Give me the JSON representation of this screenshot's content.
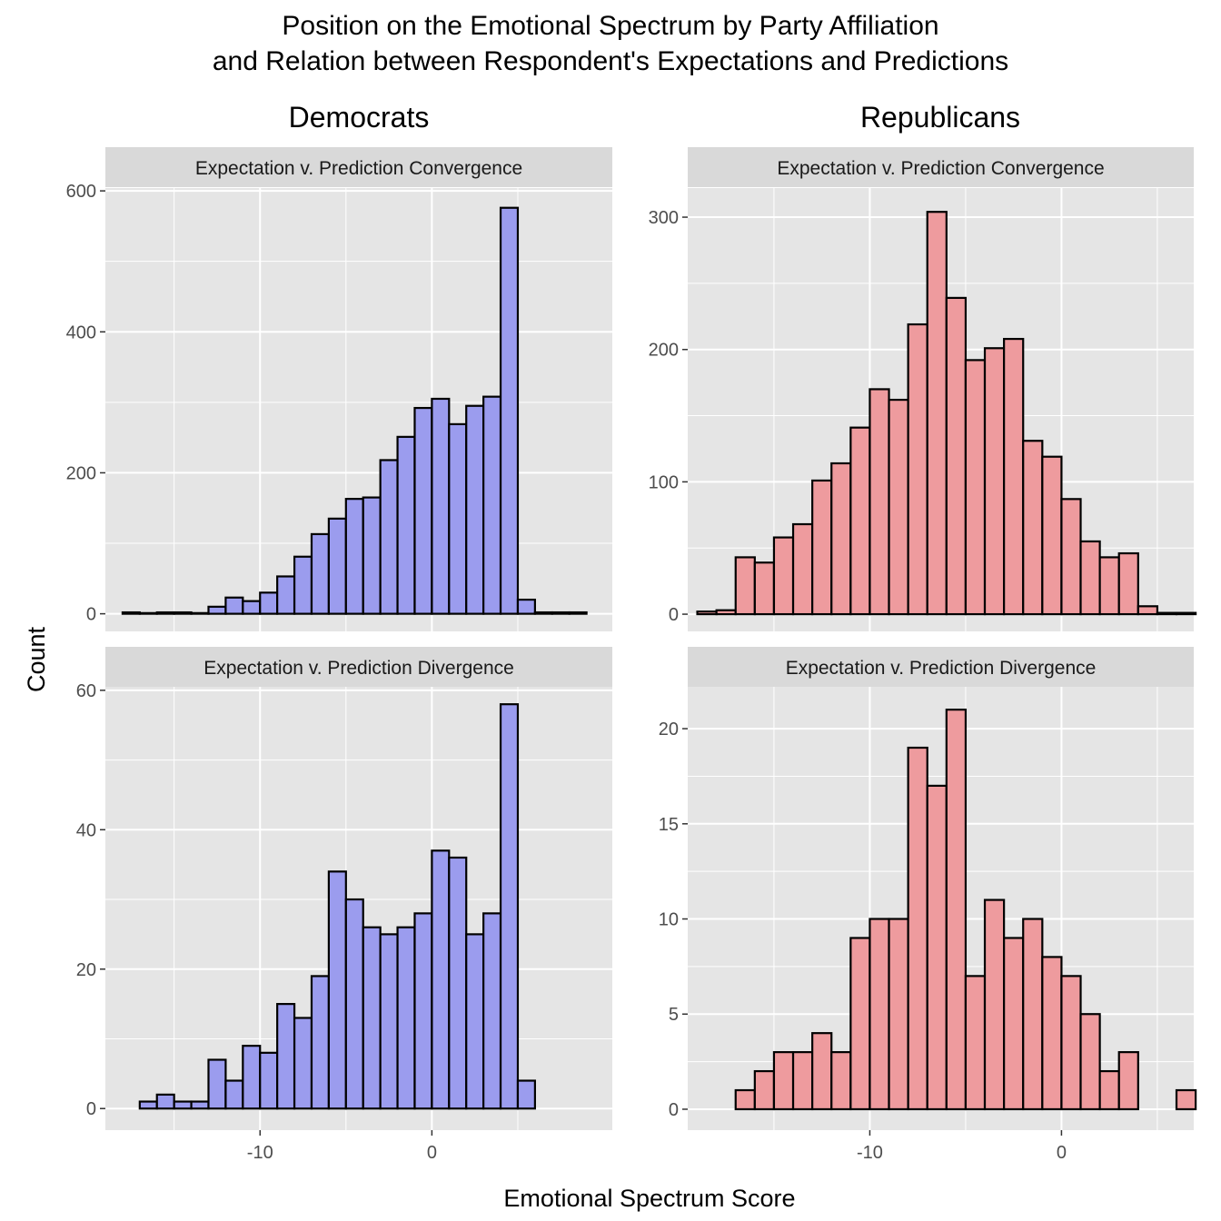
{
  "title_line1": "Position on the Emotional Spectrum by Party Affiliation",
  "title_line2": "and Relation between Respondent's Expectations and Predictions",
  "xlabel": "Emotional Spectrum Score",
  "ylabel": "Count",
  "colors": {
    "democrats_fill": "#9b9cee",
    "republicans_fill": "#ee9b9e",
    "bar_outline": "#000000",
    "panel_bg": "#e5e5e5",
    "strip_bg": "#d9d9d9",
    "grid": "#ffffff"
  },
  "chart_data": [
    {
      "type": "bar",
      "party": "Democrats",
      "facet": "Expectation v. Prediction Convergence",
      "x_ticks": [
        -10,
        0
      ],
      "y_ticks": [
        0,
        200,
        400,
        600
      ],
      "xlim": [
        -19,
        10.5
      ],
      "ylim": [
        -25,
        604
      ],
      "bin_width": 1,
      "bin_centers": [
        -17.5,
        -16.5,
        -15.5,
        -14.5,
        -13.5,
        -12.5,
        -11.5,
        -10.5,
        -9.5,
        -8.5,
        -7.5,
        -6.5,
        -5.5,
        -4.5,
        -3.5,
        -2.5,
        -1.5,
        -0.5,
        0.5,
        1.5,
        2.5,
        3.5,
        4.5,
        5.5,
        6.5,
        7.5,
        8.5
      ],
      "values": [
        2,
        1,
        2,
        2,
        1,
        10,
        23,
        18,
        30,
        53,
        81,
        113,
        135,
        163,
        165,
        218,
        251,
        292,
        305,
        269,
        295,
        308,
        576,
        20,
        2,
        2,
        2
      ]
    },
    {
      "type": "bar",
      "party": "Republicans",
      "facet": "Expectation v. Prediction Convergence",
      "x_ticks": [
        -10,
        0
      ],
      "y_ticks": [
        0,
        100,
        200,
        300
      ],
      "xlim": [
        -19.5,
        6.9
      ],
      "ylim": [
        -13,
        322
      ],
      "bin_width": 1,
      "bin_centers": [
        -18.5,
        -17.5,
        -16.5,
        -15.5,
        -14.5,
        -13.5,
        -12.5,
        -11.5,
        -10.5,
        -9.5,
        -8.5,
        -7.5,
        -6.5,
        -5.5,
        -4.5,
        -3.5,
        -2.5,
        -1.5,
        -0.5,
        0.5,
        1.5,
        2.5,
        3.5,
        4.5,
        5.5,
        6.5
      ],
      "values": [
        2,
        3,
        43,
        39,
        58,
        68,
        101,
        114,
        141,
        170,
        162,
        219,
        304,
        239,
        192,
        201,
        208,
        131,
        119,
        87,
        55,
        43,
        46,
        6,
        1,
        1
      ]
    },
    {
      "type": "bar",
      "party": "Democrats",
      "facet": "Expectation v. Prediction Divergence",
      "x_ticks": [
        -10,
        0
      ],
      "y_ticks": [
        0,
        20,
        40,
        60
      ],
      "xlim": [
        -19,
        10.5
      ],
      "ylim": [
        -3.1,
        60.5
      ],
      "bin_width": 1,
      "bin_centers": [
        -17.5,
        -16.5,
        -15.5,
        -14.5,
        -13.5,
        -12.5,
        -11.5,
        -10.5,
        -9.5,
        -8.5,
        -7.5,
        -6.5,
        -5.5,
        -4.5,
        -3.5,
        -2.5,
        -1.5,
        -0.5,
        0.5,
        1.5,
        2.5,
        3.5,
        4.5,
        5.5,
        6.5,
        7.5,
        8.5
      ],
      "values": [
        0,
        1,
        2,
        1,
        1,
        7,
        4,
        9,
        8,
        15,
        13,
        19,
        34,
        30,
        26,
        25,
        26,
        28,
        37,
        36,
        25,
        28,
        58,
        4,
        0,
        0,
        0
      ]
    },
    {
      "type": "bar",
      "party": "Republicans",
      "facet": "Expectation v. Prediction Divergence",
      "x_ticks": [
        -10,
        0
      ],
      "y_ticks": [
        0,
        5,
        10,
        15,
        20
      ],
      "xlim": [
        -19.5,
        6.9
      ],
      "ylim": [
        -1.1,
        22.2
      ],
      "bin_width": 1,
      "bin_centers": [
        -18.5,
        -17.5,
        -16.5,
        -15.5,
        -14.5,
        -13.5,
        -12.5,
        -11.5,
        -10.5,
        -9.5,
        -8.5,
        -7.5,
        -6.5,
        -5.5,
        -4.5,
        -3.5,
        -2.5,
        -1.5,
        -0.5,
        0.5,
        1.5,
        2.5,
        3.5,
        4.5,
        5.5,
        6.5
      ],
      "values": [
        0,
        0,
        1,
        2,
        3,
        3,
        4,
        3,
        9,
        10,
        10,
        19,
        17,
        21,
        7,
        11,
        9,
        10,
        8,
        7,
        5,
        2,
        3,
        0,
        0,
        1
      ]
    }
  ]
}
